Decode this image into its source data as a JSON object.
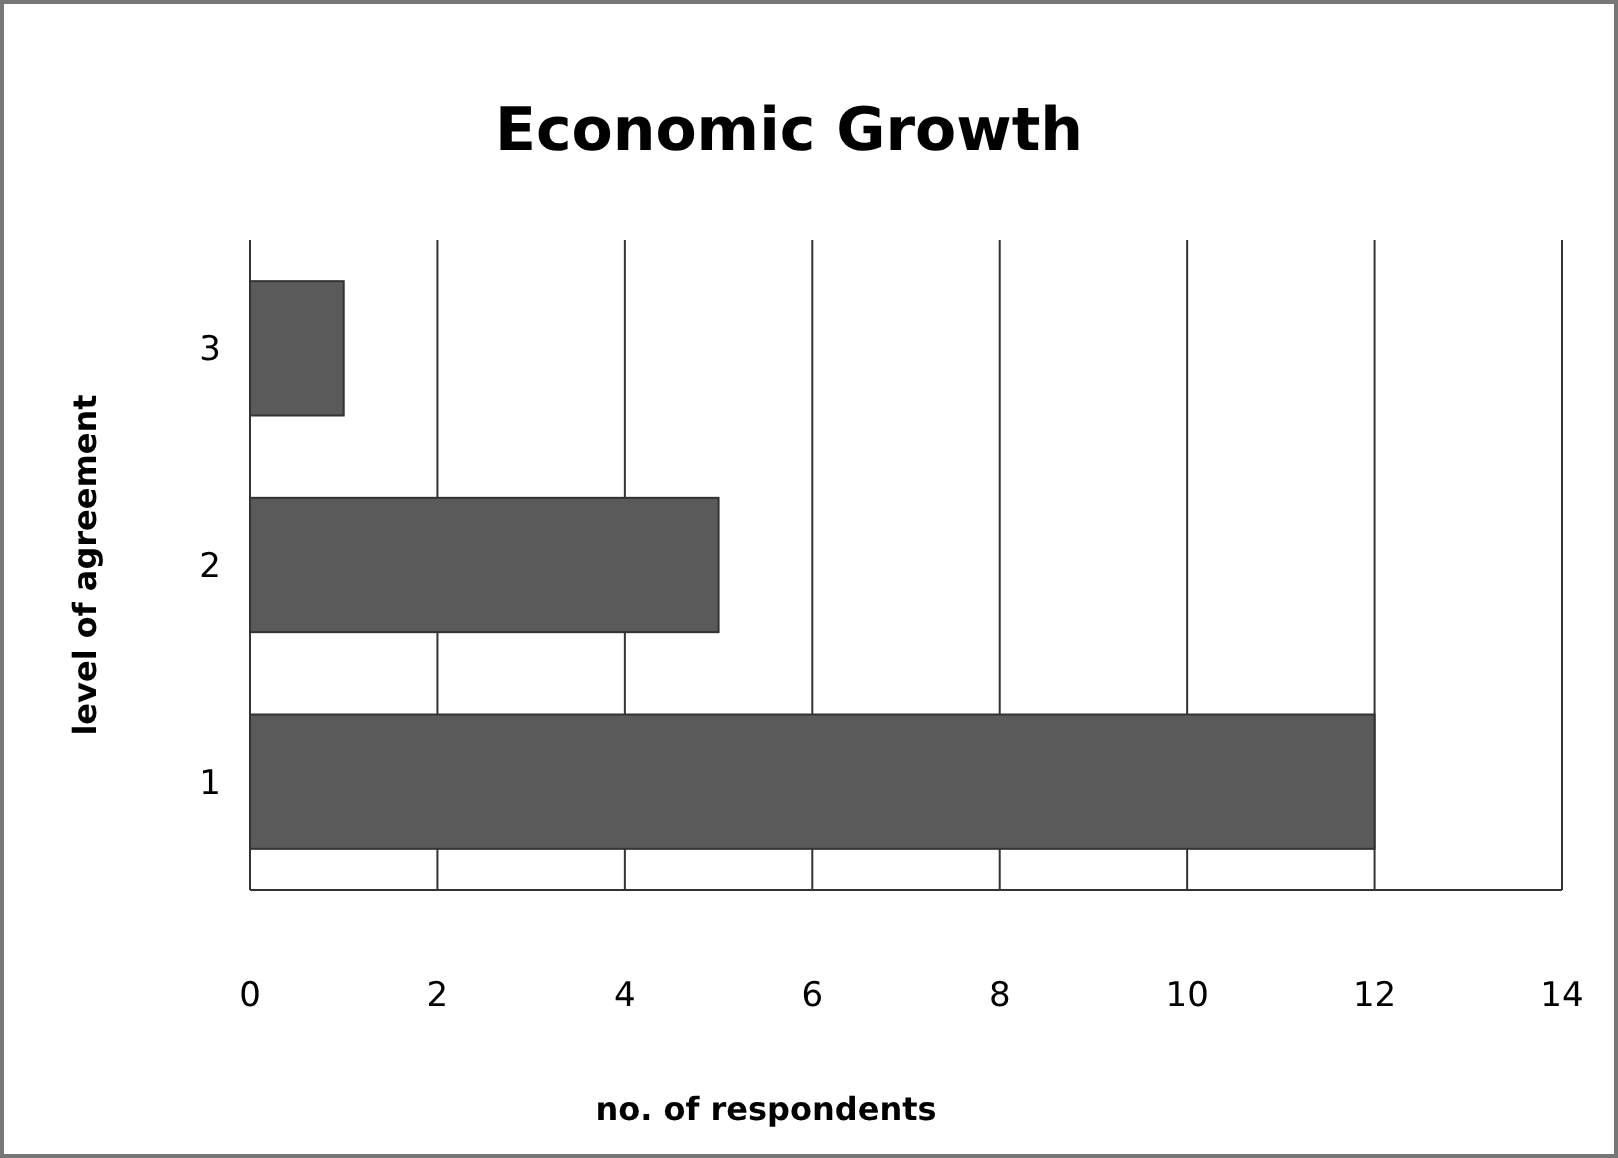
{
  "chart_data": {
    "type": "bar",
    "orientation": "horizontal",
    "title": "Economic Growth",
    "xlabel": "no. of respondents",
    "ylabel": "level of agreement",
    "categories": [
      "3",
      "2",
      "1"
    ],
    "values": [
      1,
      5,
      12
    ],
    "color": "#5a5a5a",
    "xlim": [
      0,
      14
    ],
    "xticks": [
      0,
      2,
      4,
      6,
      8,
      10,
      12,
      14
    ],
    "grid": "x"
  }
}
